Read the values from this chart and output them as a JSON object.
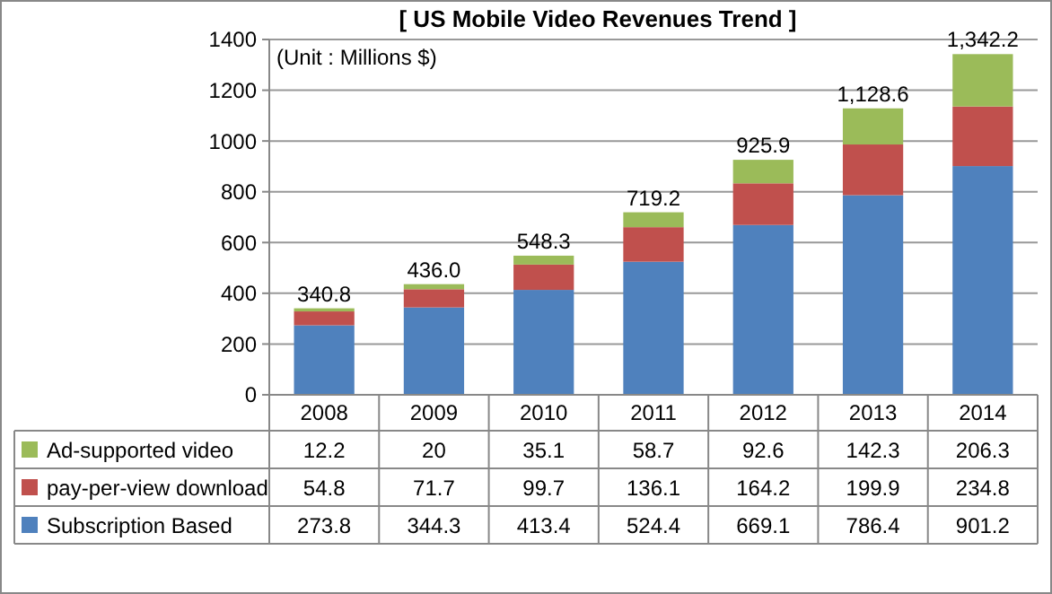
{
  "chart_data": {
    "type": "bar",
    "title": "[ US Mobile Video Revenues Trend ]",
    "annotations": [
      "(Unit : Millions $)"
    ],
    "categories": [
      "2008",
      "2009",
      "2010",
      "2011",
      "2012",
      "2013",
      "2014"
    ],
    "series": [
      {
        "name": "Subscription Based",
        "color": "#4f81bd",
        "values": [
          273.8,
          344.3,
          413.4,
          524.4,
          669.1,
          786.4,
          901.2
        ]
      },
      {
        "name": "pay-per-view download",
        "color": "#c0504d",
        "values": [
          54.8,
          71.7,
          99.7,
          136.1,
          164.2,
          199.9,
          234.8
        ]
      },
      {
        "name": "Ad-supported video",
        "color": "#9bbb59",
        "values": [
          12.2,
          20,
          35.1,
          58.7,
          92.6,
          142.3,
          206.3
        ]
      }
    ],
    "stacked": true,
    "totals": [
      "340.8",
      "436.0",
      "548.3",
      "719.2",
      "925.9",
      "1,128.6",
      "1,342.2"
    ],
    "ylim": [
      0,
      1400
    ],
    "yticks": [
      0,
      200,
      400,
      600,
      800,
      1000,
      1200,
      1400
    ],
    "grid": "y",
    "legend": "bottom",
    "data_labels": true
  }
}
